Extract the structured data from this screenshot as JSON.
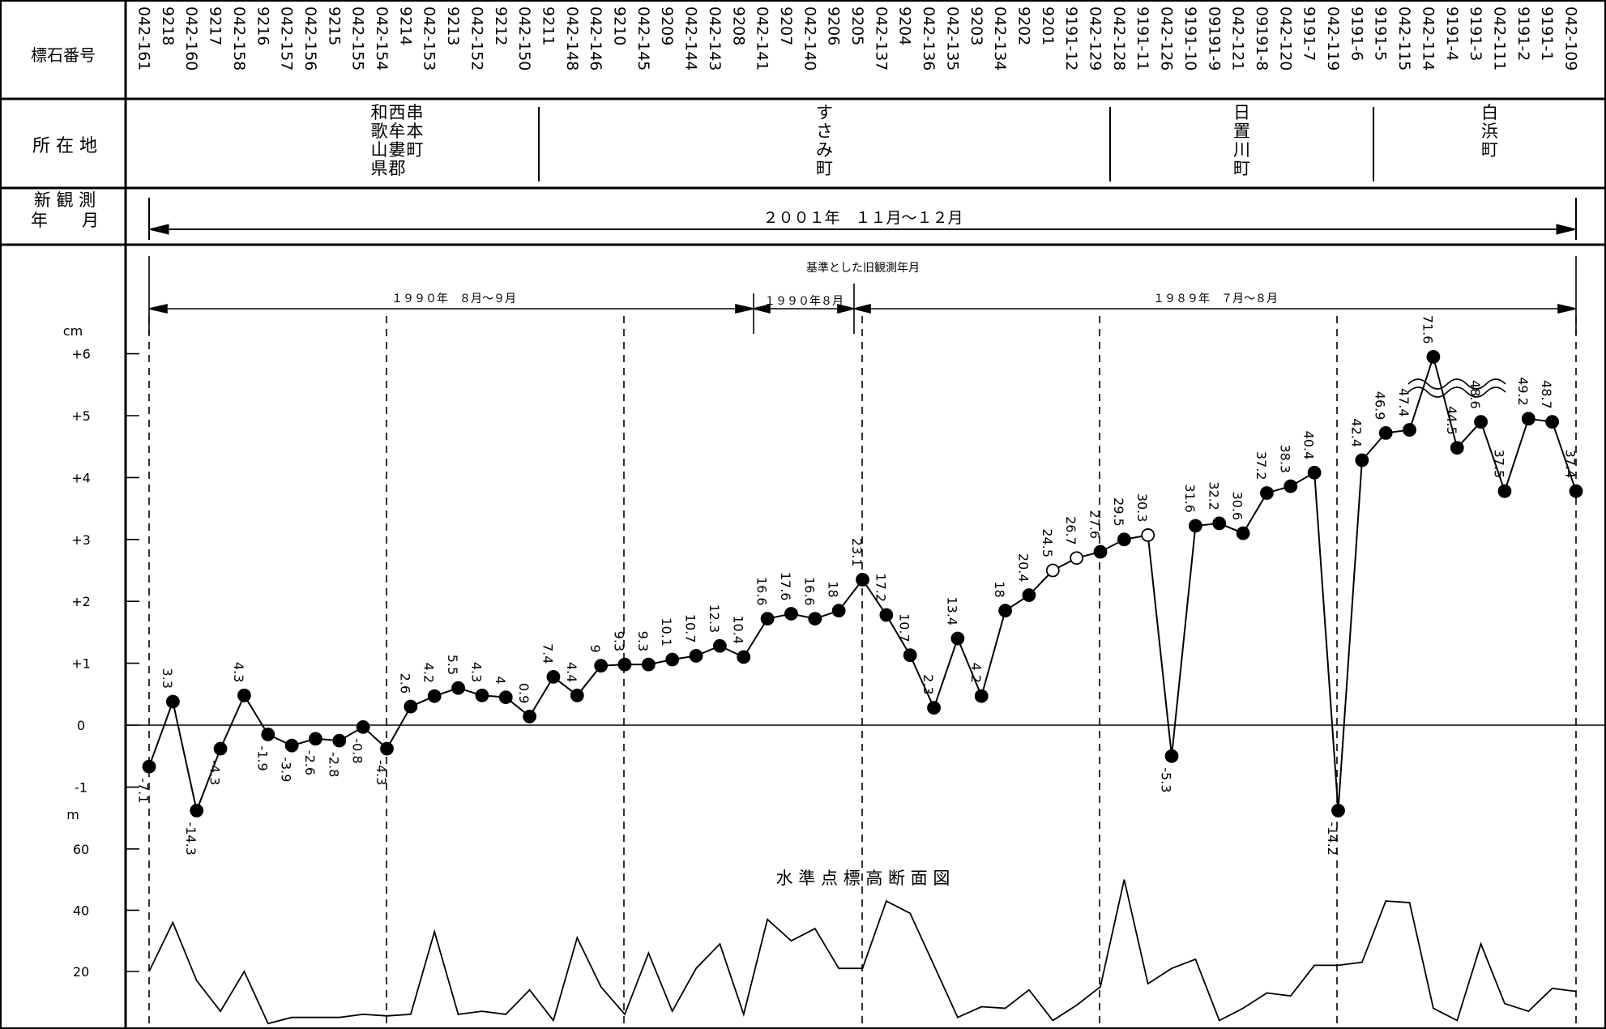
{
  "header": {
    "benchmark_label": "標石番号",
    "location_label": "所 在 地",
    "new_survey_label": "新 観 測\n年　　月",
    "new_survey_period": "２００１年　１１月～１２月"
  },
  "benchmarks": [
    "042-161",
    "9218",
    "042-160",
    "9217",
    "042-158",
    "9216",
    "042-157",
    "042-156",
    "9215",
    "042-155",
    "042-154",
    "9214",
    "042-153",
    "9213",
    "042-152",
    "9212",
    "042-150",
    "9211",
    "042-148",
    "042-146",
    "9210",
    "042-145",
    "9209",
    "042-144",
    "042-143",
    "9208",
    "042-141",
    "9207",
    "042-140",
    "9206",
    "9205",
    "042-137",
    "9204",
    "042-136",
    "042-135",
    "9203",
    "042-134",
    "9202",
    "9201",
    "9191-12",
    "042-129",
    "042-128",
    "9191-11",
    "042-126",
    "9191-10",
    "09191-9",
    "042-121",
    "09191-8",
    "042-120",
    "9191-7",
    "042-119",
    "9191-6",
    "9191-5",
    "042-115",
    "042-114",
    "9191-4",
    "9191-3",
    "042-111",
    "9191-2",
    "9191-1",
    "042-109"
  ],
  "locations": [
    {
      "name": "串本町\n西牟婁郡\n和歌山県"
    },
    {
      "name": "すさみ町"
    },
    {
      "name": "日置川町"
    },
    {
      "name": "白浜町"
    }
  ],
  "old_survey": {
    "title": "基準とした旧観測年月",
    "periods": [
      "１９９０年　８月～９月",
      "１９９０年８月",
      "１９８９年　７月～８月"
    ]
  },
  "axis": {
    "unit_cm": "cm",
    "unit_m": "m",
    "cm_ticks": [
      "+6",
      "+5",
      "+4",
      "+3",
      "+2",
      "+1",
      "0",
      "-1"
    ],
    "m_ticks": [
      "60",
      "40",
      "20"
    ]
  },
  "chart_data": [
    {
      "type": "line",
      "ylabel": "cm",
      "ylim": [
        -1.8,
        6.5
      ],
      "categories_ref": "benchmarks",
      "series": [
        {
          "values": [
            -0.67,
            0.38,
            -1.38,
            -0.38,
            0.48,
            -0.15,
            -0.33,
            -0.22,
            -0.25,
            -0.03,
            -0.38,
            0.3,
            0.47,
            0.6,
            0.48,
            0.45,
            0.14,
            0.78,
            0.48,
            0.96,
            0.98,
            0.98,
            1.06,
            1.12,
            1.28,
            1.1,
            1.72,
            1.8,
            1.72,
            1.85,
            2.35,
            1.78,
            1.13,
            0.28,
            1.4,
            0.47,
            1.85,
            2.1,
            2.5,
            2.7,
            2.8,
            3.0,
            3.07,
            -0.5,
            3.22,
            3.26,
            3.1,
            3.75,
            3.86,
            4.08,
            -1.38,
            4.28,
            4.72,
            4.77,
            5.95,
            4.48,
            4.9,
            3.78,
            4.95,
            4.9,
            3.78
          ],
          "labels": [
            "-7.1",
            "3.3",
            "-14.3",
            "-4.3",
            "4.3",
            "-1.9",
            "-3.9",
            "-2.6",
            "-2.8",
            "-0.8",
            "-4.3",
            "2.6",
            "4.2",
            "5.5",
            "4.3",
            "4",
            "0.9",
            "7.4",
            "4.4",
            "9",
            "9.3",
            "9.3",
            "10.1",
            "10.7",
            "12.3",
            "10.4",
            "16.6",
            "17.6",
            "16.6",
            "18",
            "23.1",
            "17.2",
            "10.7",
            "2.3",
            "13.4",
            "4.2",
            "18",
            "20.4",
            "24.5",
            "26.7",
            "27.6",
            "29.5",
            "30.3",
            "-5.3",
            "31.6",
            "32.2",
            "30.6",
            "37.2",
            "38.3",
            "40.4",
            "-14.2",
            "42.4",
            "46.9",
            "47.4",
            "71.6",
            "44.5",
            "48.6",
            "37.5",
            "49.2",
            "48.7",
            "37.4"
          ],
          "open_markers": [
            38,
            39,
            42
          ]
        }
      ]
    },
    {
      "type": "line",
      "title": "水 準 点 標 高 断 面 図",
      "ylabel": "m",
      "ylim": [
        0,
        70
      ],
      "categories_ref": "benchmarks",
      "series": [
        {
          "values": [
            20,
            36,
            17,
            7,
            20,
            3,
            5,
            5,
            5,
            6,
            5.5,
            6,
            33,
            6,
            7,
            6,
            14,
            4,
            31,
            15,
            6,
            26,
            7,
            21,
            29,
            6,
            37,
            30,
            34,
            21,
            21,
            43,
            39,
            22,
            5,
            8.5,
            8,
            14,
            4,
            9,
            15,
            50,
            16,
            21,
            24,
            4,
            8,
            13,
            12,
            22,
            22,
            23,
            43,
            42.5,
            8,
            4,
            29,
            9.5,
            7,
            14.5,
            13.5
          ]
        }
      ]
    }
  ]
}
